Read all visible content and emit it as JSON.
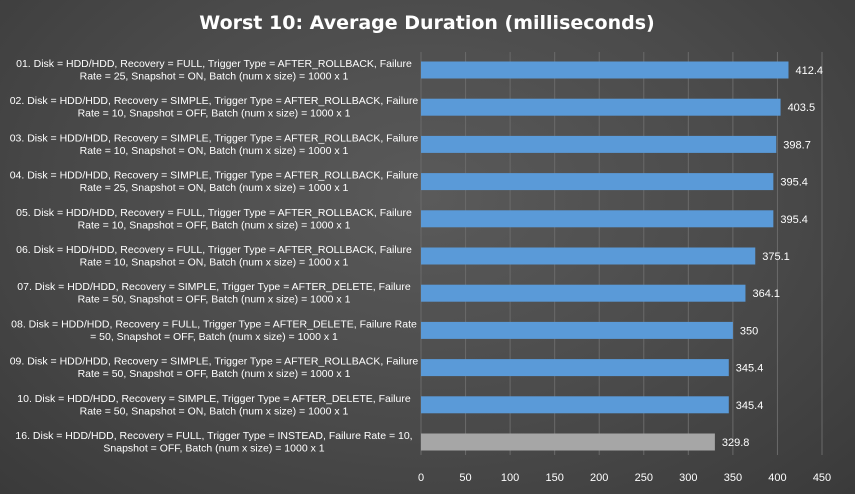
{
  "chart_data": {
    "type": "bar",
    "orientation": "horizontal",
    "title": "Worst 10: Average Duration (milliseconds)",
    "xlim": [
      0,
      450
    ],
    "x_ticks": [
      0,
      50,
      100,
      150,
      200,
      250,
      300,
      350,
      400,
      450
    ],
    "grid": true,
    "legend": "none",
    "colors": {
      "bar": "#5a9ad8",
      "highlight_bar": "#a6a6a6",
      "background": "#4a4a4a"
    },
    "categories": [
      [
        "01. Disk = HDD/HDD, Recovery = FULL, Trigger Type = AFTER_ROLLBACK, Failure",
        "Rate = 25, Snapshot = ON, Batch (num x size) = 1000 x 1"
      ],
      [
        "02. Disk = HDD/HDD, Recovery = SIMPLE, Trigger Type = AFTER_ROLLBACK, Failure",
        "Rate = 10, Snapshot = OFF, Batch (num x size) = 1000 x 1"
      ],
      [
        "03. Disk = HDD/HDD, Recovery = SIMPLE, Trigger Type = AFTER_ROLLBACK, Failure",
        "Rate = 10, Snapshot = ON, Batch (num x size) = 1000 x 1"
      ],
      [
        "04. Disk = HDD/HDD, Recovery = SIMPLE, Trigger Type = AFTER_ROLLBACK, Failure",
        "Rate = 25, Snapshot = ON, Batch (num x size) = 1000 x 1"
      ],
      [
        "05. Disk = HDD/HDD, Recovery = FULL, Trigger Type = AFTER_ROLLBACK, Failure",
        "Rate = 10, Snapshot = OFF, Batch (num x size) = 1000 x 1"
      ],
      [
        "06. Disk = HDD/HDD, Recovery = FULL, Trigger Type = AFTER_ROLLBACK, Failure",
        "Rate = 10, Snapshot = ON, Batch (num x size) = 1000 x 1"
      ],
      [
        "07. Disk = HDD/HDD, Recovery = SIMPLE, Trigger Type = AFTER_DELETE, Failure",
        "Rate = 50, Snapshot = OFF, Batch (num x size) = 1000 x 1"
      ],
      [
        "08. Disk = HDD/HDD, Recovery = FULL, Trigger Type = AFTER_DELETE, Failure Rate",
        "= 50, Snapshot = OFF, Batch (num x size) = 1000 x 1"
      ],
      [
        "09. Disk = HDD/HDD, Recovery = SIMPLE, Trigger Type = AFTER_ROLLBACK, Failure",
        "Rate = 50, Snapshot = OFF, Batch (num x size) = 1000 x 1"
      ],
      [
        "10. Disk = HDD/HDD, Recovery = SIMPLE, Trigger Type = AFTER_DELETE, Failure",
        "Rate = 50, Snapshot = ON, Batch (num x size) = 1000 x 1"
      ],
      [
        "16. Disk = HDD/HDD, Recovery = FULL, Trigger Type = INSTEAD, Failure Rate = 10,",
        "Snapshot = OFF, Batch (num x size) = 1000 x 1"
      ]
    ],
    "values": [
      412.4,
      403.5,
      398.7,
      395.4,
      395.4,
      375.1,
      364.1,
      350,
      345.4,
      345.4,
      329.8
    ],
    "value_labels": [
      "412.4",
      "403.5",
      "398.7",
      "395.4",
      "395.4",
      "375.1",
      "364.1",
      "350",
      "345.4",
      "345.4",
      "329.8"
    ],
    "highlighted": [
      false,
      false,
      false,
      false,
      false,
      false,
      false,
      false,
      false,
      false,
      true
    ]
  }
}
